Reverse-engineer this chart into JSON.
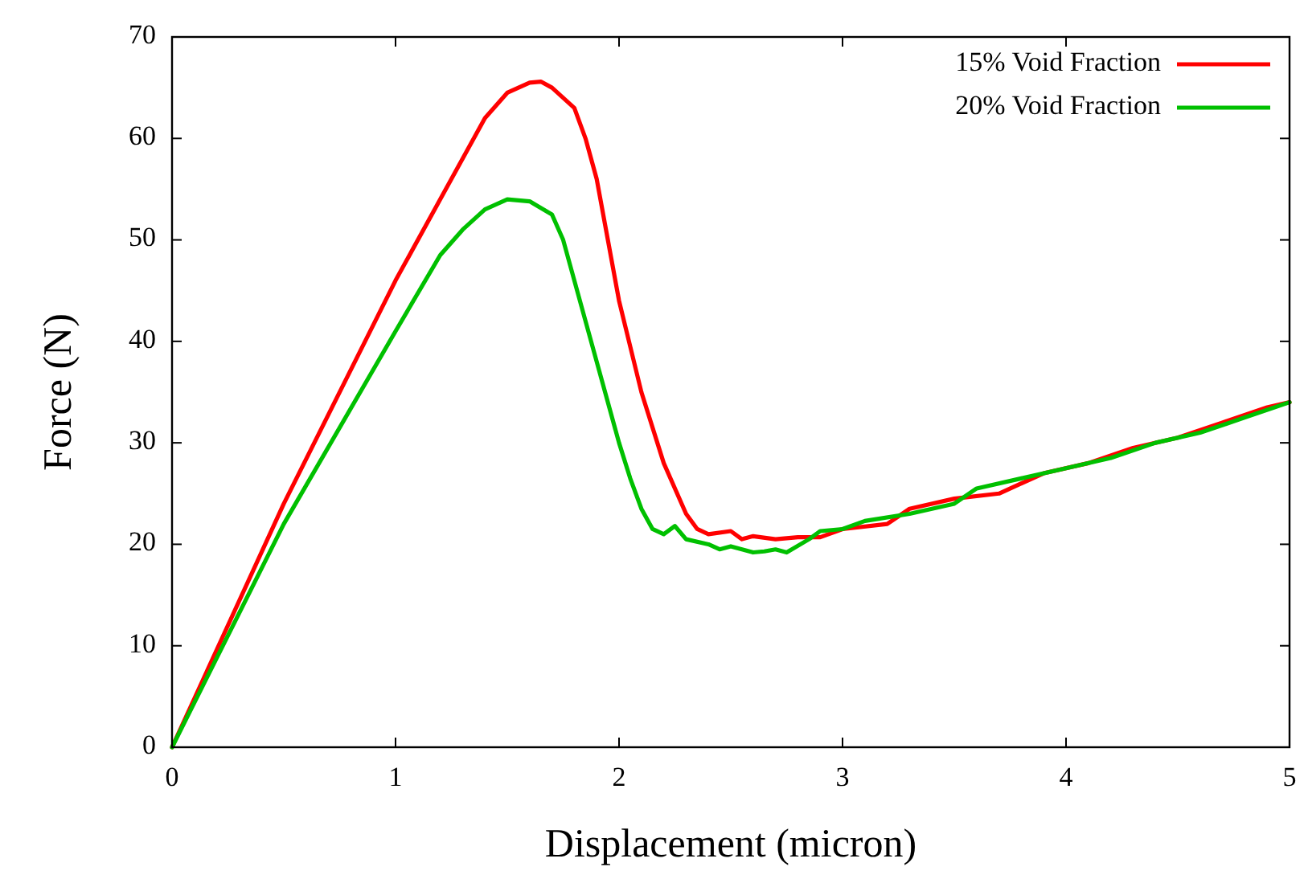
{
  "chart_data": {
    "type": "line",
    "xlabel": "Displacement (micron)",
    "ylabel": "Force (N)",
    "xlim": [
      0,
      5
    ],
    "ylim": [
      0,
      70
    ],
    "xticks": [
      0,
      1,
      2,
      3,
      4,
      5
    ],
    "yticks": [
      0,
      10,
      20,
      30,
      40,
      50,
      60,
      70
    ],
    "grid": false,
    "legend": "top right",
    "line_style": "solid",
    "series": [
      {
        "name": "15% Void Fraction",
        "color": "#ff0000",
        "x": [
          0,
          0.5,
          1,
          1.2,
          1.4,
          1.5,
          1.6,
          1.65,
          1.7,
          1.8,
          1.85,
          1.9,
          1.95,
          2.0,
          2.1,
          2.2,
          2.3,
          2.35,
          2.4,
          2.5,
          2.55,
          2.6,
          2.7,
          2.8,
          2.9,
          3.0,
          3.2,
          3.3,
          3.5,
          3.7,
          3.9,
          4.1,
          4.3,
          4.5,
          4.7,
          4.9,
          5
        ],
        "values": [
          0,
          24,
          46,
          54,
          62,
          64.5,
          65.5,
          65.6,
          65,
          63,
          60,
          56,
          50,
          44,
          35,
          28,
          23,
          21.5,
          21,
          21.3,
          20.5,
          20.8,
          20.5,
          20.7,
          20.7,
          21.5,
          22,
          23.5,
          24.5,
          25,
          27,
          28,
          29.5,
          30.5,
          32,
          33.5,
          34
        ]
      },
      {
        "name": "20% Void Fraction",
        "color": "#00c000",
        "x": [
          0,
          0.5,
          1,
          1.2,
          1.3,
          1.4,
          1.5,
          1.6,
          1.7,
          1.75,
          1.8,
          1.9,
          2.0,
          2.05,
          2.1,
          2.15,
          2.2,
          2.25,
          2.3,
          2.4,
          2.45,
          2.5,
          2.6,
          2.65,
          2.7,
          2.75,
          2.85,
          2.9,
          3.0,
          3.1,
          3.3,
          3.5,
          3.6,
          3.8,
          4.0,
          4.2,
          4.4,
          4.6,
          4.8,
          5
        ],
        "values": [
          0,
          22,
          41,
          48.5,
          51,
          53,
          54,
          53.8,
          52.5,
          50,
          46,
          38,
          30,
          26.5,
          23.5,
          21.5,
          21,
          21.8,
          20.5,
          20,
          19.5,
          19.8,
          19.2,
          19.3,
          19.5,
          19.2,
          20.5,
          21.3,
          21.5,
          22.3,
          23,
          24,
          25.5,
          26.5,
          27.5,
          28.5,
          30,
          31,
          32.5,
          34
        ]
      }
    ]
  }
}
